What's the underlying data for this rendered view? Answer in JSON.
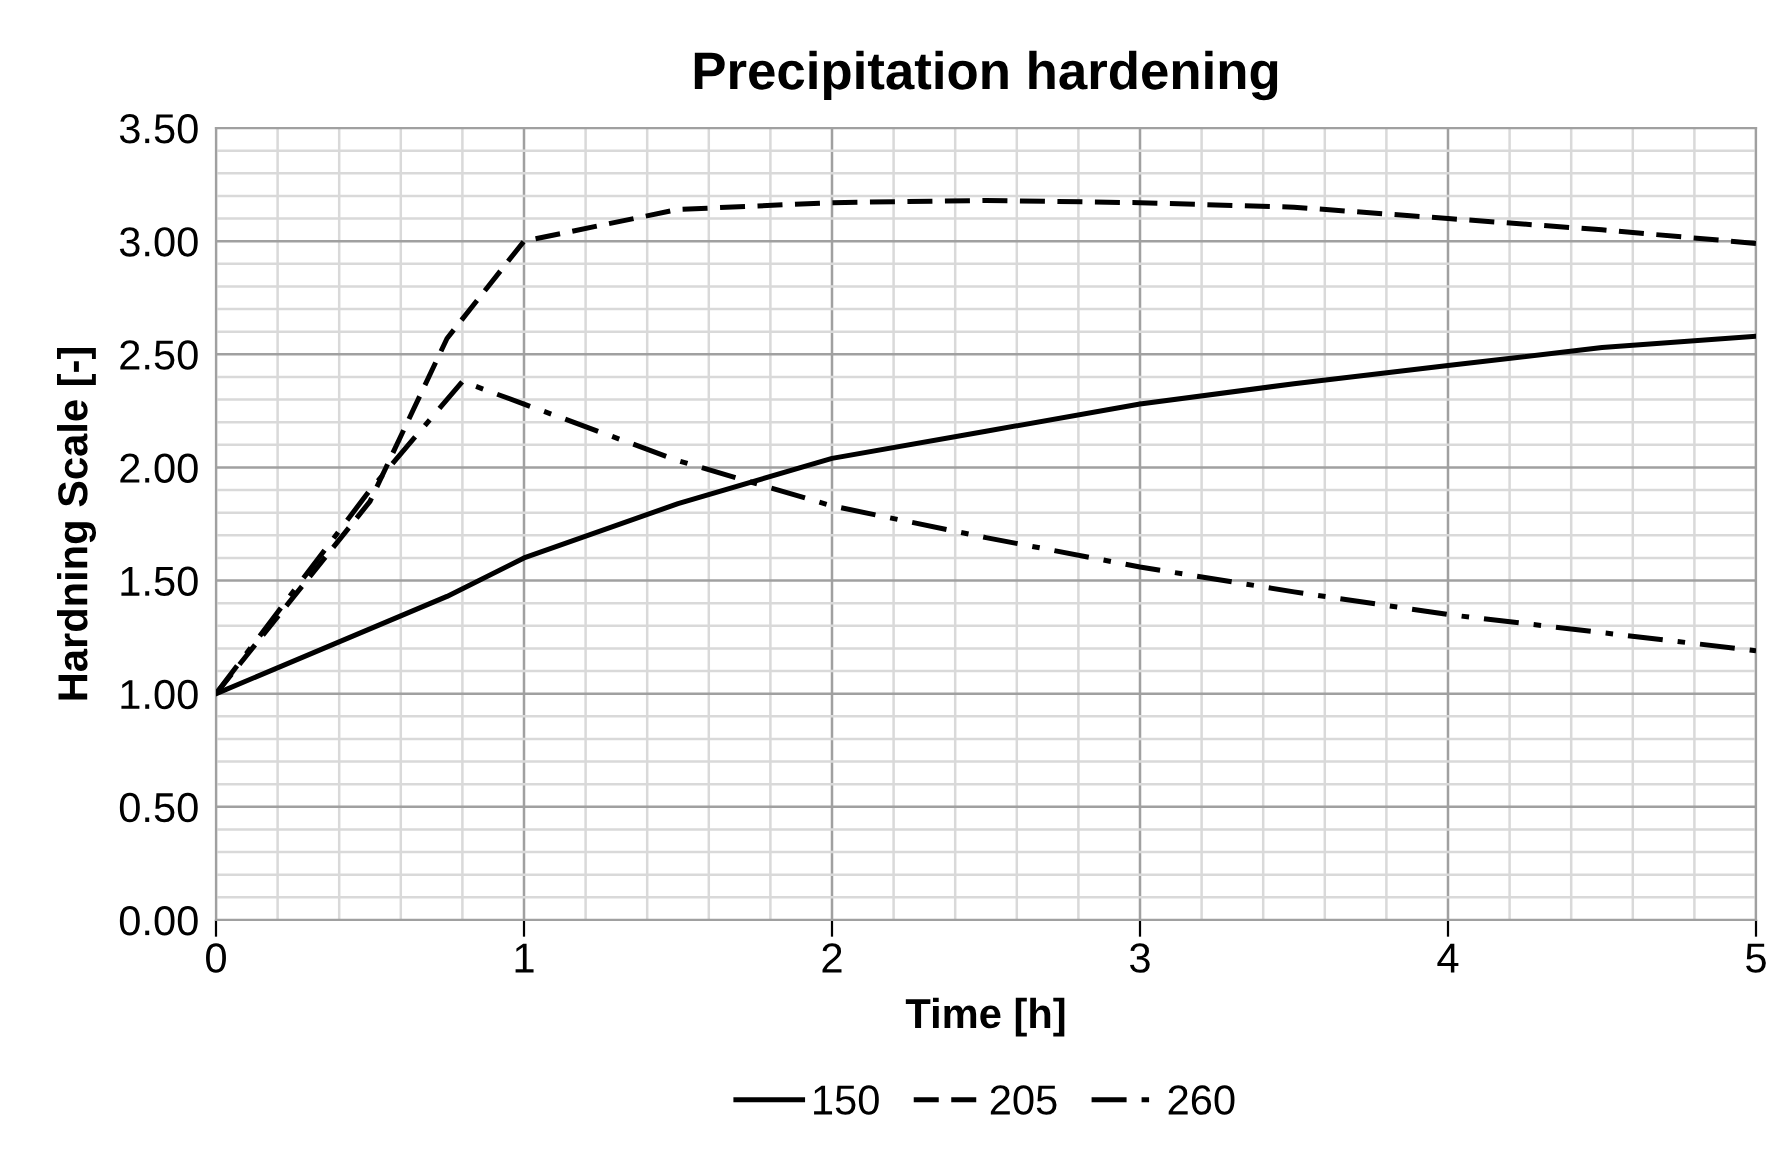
{
  "chart_data": {
    "type": "line",
    "title": "Precipitation hardening",
    "xlabel": "Time [h]",
    "ylabel": "Hardning Scale [-]",
    "xlim": [
      0,
      5
    ],
    "ylim": [
      0,
      3.5
    ],
    "xticks": [
      0,
      {
        "value": 0.2,
        "label": null
      },
      {
        "value": 0.4,
        "label": null
      },
      {
        "value": 0.6,
        "label": null
      },
      {
        "value": 0.8,
        "label": null
      },
      1,
      {
        "value": 1.2,
        "label": null
      },
      {
        "value": 1.4,
        "label": null
      },
      {
        "value": 1.6,
        "label": null
      },
      {
        "value": 1.8,
        "label": null
      },
      2,
      {
        "value": 2.2,
        "label": null
      },
      {
        "value": 2.4,
        "label": null
      },
      {
        "value": 2.6,
        "label": null
      },
      {
        "value": 2.8,
        "label": null
      },
      3,
      {
        "value": 3.2,
        "label": null
      },
      {
        "value": 3.4,
        "label": null
      },
      {
        "value": 3.6,
        "label": null
      },
      {
        "value": 3.8,
        "label": null
      },
      4,
      {
        "value": 4.2,
        "label": null
      },
      {
        "value": 4.4,
        "label": null
      },
      {
        "value": 4.6,
        "label": null
      },
      {
        "value": 4.8,
        "label": null
      },
      5
    ],
    "yticks": [
      {
        "value": 0,
        "label": "0.00"
      },
      {
        "value": 0.1,
        "label": null
      },
      {
        "value": 0.2,
        "label": null
      },
      {
        "value": 0.3,
        "label": null
      },
      {
        "value": 0.4,
        "label": null
      },
      {
        "value": 0.5,
        "label": "0.50"
      },
      {
        "value": 0.6,
        "label": null
      },
      {
        "value": 0.7,
        "label": null
      },
      {
        "value": 0.8,
        "label": null
      },
      {
        "value": 0.9,
        "label": null
      },
      {
        "value": 1,
        "label": "1.00"
      },
      {
        "value": 1.1,
        "label": null
      },
      {
        "value": 1.2,
        "label": null
      },
      {
        "value": 1.3,
        "label": null
      },
      {
        "value": 1.4,
        "label": null
      },
      {
        "value": 1.5,
        "label": "1.50"
      },
      {
        "value": 1.6,
        "label": null
      },
      {
        "value": 1.7,
        "label": null
      },
      {
        "value": 1.8,
        "label": null
      },
      {
        "value": 1.9,
        "label": null
      },
      {
        "value": 2,
        "label": "2.00"
      },
      {
        "value": 2.1,
        "label": null
      },
      {
        "value": 2.2,
        "label": null
      },
      {
        "value": 2.3,
        "label": null
      },
      {
        "value": 2.4,
        "label": null
      },
      {
        "value": 2.5,
        "label": "2.50"
      },
      {
        "value": 2.6,
        "label": null
      },
      {
        "value": 2.7,
        "label": null
      },
      {
        "value": 2.8,
        "label": null
      },
      {
        "value": 2.9,
        "label": null
      },
      {
        "value": 3,
        "label": "3.00"
      },
      {
        "value": 3.1,
        "label": null
      },
      {
        "value": 3.2,
        "label": null
      },
      {
        "value": 3.3,
        "label": null
      },
      {
        "value": 3.4,
        "label": null
      },
      {
        "value": 3.5,
        "label": "3.50"
      }
    ],
    "grid": true,
    "legend": "bottom",
    "marker": "none",
    "series": [
      {
        "name": "150",
        "color": "#000000",
        "line_style": "solid",
        "x": [
          0,
          0.75,
          1,
          1.5,
          2,
          2.5,
          3,
          3.5,
          4,
          4.5,
          5
        ],
        "values": [
          1.0,
          1.43,
          1.6,
          1.84,
          2.04,
          2.16,
          2.28,
          2.37,
          2.45,
          2.53,
          2.58
        ]
      },
      {
        "name": "205",
        "color": "#000000",
        "line_style": "dashed",
        "x": [
          0,
          0.5,
          0.75,
          1,
          1.5,
          2,
          2.5,
          3,
          3.5,
          4,
          4.5,
          5
        ],
        "values": [
          1.0,
          1.85,
          2.57,
          3.0,
          3.14,
          3.17,
          3.18,
          3.17,
          3.15,
          3.1,
          3.05,
          2.99
        ]
      },
      {
        "name": "260",
        "color": "#000000",
        "line_style": "dashdot",
        "x": [
          0,
          0.5,
          0.8,
          1,
          1.5,
          2,
          2.5,
          3,
          3.5,
          4,
          4.5,
          5
        ],
        "values": [
          1.0,
          1.9,
          2.38,
          2.28,
          2.03,
          1.83,
          1.69,
          1.56,
          1.45,
          1.35,
          1.27,
          1.19
        ]
      }
    ]
  }
}
